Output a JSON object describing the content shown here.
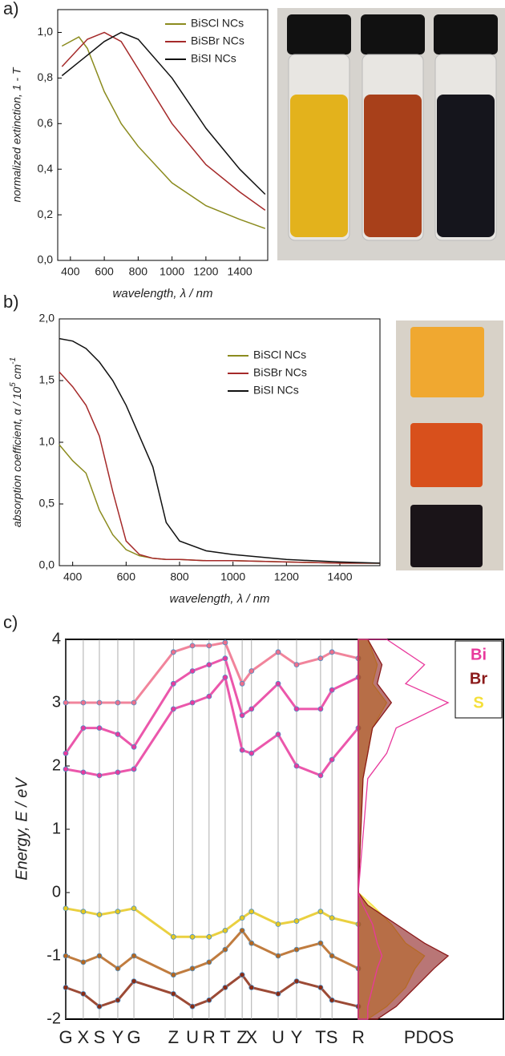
{
  "chart_data": [
    {
      "type": "line",
      "panel_label": "a)",
      "y_label": "normalized extinction, 1 - T",
      "x_label": "wavelength, λ / nm",
      "x": [
        350,
        450,
        500,
        600,
        700,
        800,
        1000,
        1200,
        1400,
        1550
      ],
      "xlim": [
        325,
        1565
      ],
      "xticks": [
        400,
        600,
        800,
        1000,
        1200,
        1400
      ],
      "ylim": [
        0,
        1.1
      ],
      "yticks": [
        {
          "value": 0,
          "label": "0,0"
        },
        {
          "value": 0.2,
          "label": "0,2"
        },
        {
          "value": 0.4,
          "label": "0,4"
        },
        {
          "value": 0.6,
          "label": "0,6"
        },
        {
          "value": 0.8,
          "label": "0,8"
        },
        {
          "value": 1.0,
          "label": "1,0"
        }
      ],
      "series": [
        {
          "name": "BiSCl NCs",
          "color": "#8b8b1e",
          "values": [
            0.94,
            0.98,
            0.93,
            0.74,
            0.6,
            0.5,
            0.34,
            0.24,
            0.18,
            0.14
          ]
        },
        {
          "name": "BiSBr NCs",
          "color": "#a52a2a",
          "values": [
            0.85,
            0.93,
            0.97,
            1.0,
            0.96,
            0.84,
            0.6,
            0.42,
            0.3,
            0.22
          ]
        },
        {
          "name": "BiSI NCs",
          "color": "#111111",
          "values": [
            0.81,
            0.87,
            0.9,
            0.96,
            1.0,
            0.97,
            0.8,
            0.58,
            0.4,
            0.29
          ]
        }
      ]
    },
    {
      "type": "line",
      "panel_label": "b)",
      "y_label": [
        "absorption coefficient, α / 10",
        "5",
        " cm",
        "-1"
      ],
      "x_label": "wavelength, λ / nm",
      "x": [
        350,
        400,
        450,
        500,
        550,
        600,
        650,
        700,
        750,
        800,
        900,
        1000,
        1200,
        1400,
        1550
      ],
      "xlim": [
        350,
        1550
      ],
      "xticks": [
        400,
        600,
        800,
        1000,
        1200,
        1400
      ],
      "ylim": [
        0,
        2
      ],
      "yticks": [
        {
          "value": 0,
          "label": "0,0"
        },
        {
          "value": 0.5,
          "label": "0,5"
        },
        {
          "value": 1.0,
          "label": "1,0"
        },
        {
          "value": 1.5,
          "label": "1,5"
        },
        {
          "value": 2.0,
          "label": "2,0"
        }
      ],
      "series": [
        {
          "name": "BiSCl NCs",
          "color": "#8b8b1e",
          "values": [
            0.98,
            0.85,
            0.75,
            0.45,
            0.25,
            0.13,
            0.08,
            0.06,
            0.05,
            0.05,
            0.04,
            0.04,
            0.03,
            0.02,
            0.02
          ]
        },
        {
          "name": "BiSBr NCs",
          "color": "#a52a2a",
          "values": [
            1.57,
            1.45,
            1.3,
            1.05,
            0.6,
            0.2,
            0.09,
            0.06,
            0.05,
            0.05,
            0.04,
            0.04,
            0.03,
            0.02,
            0.02
          ]
        },
        {
          "name": "BiSI NCs",
          "color": "#111111",
          "values": [
            1.84,
            1.82,
            1.76,
            1.65,
            1.5,
            1.3,
            1.05,
            0.8,
            0.35,
            0.2,
            0.12,
            0.09,
            0.05,
            0.03,
            0.02
          ]
        }
      ]
    },
    {
      "type": "band",
      "panel_label": "c)",
      "y_label": "Energy, E / eV",
      "categories": [
        "G",
        "X",
        "S",
        "Y",
        "G",
        "Z",
        "U",
        "R",
        "T",
        "Z",
        "X",
        "U",
        "Y",
        "T",
        "S",
        "R"
      ],
      "x": [
        0,
        0.06,
        0.115,
        0.178,
        0.233,
        0.368,
        0.433,
        0.49,
        0.545,
        0.603,
        0.635,
        0.726,
        0.789,
        0.871,
        0.91,
        1.0
      ],
      "xlim": [
        0,
        1
      ],
      "ylim": [
        -2,
        4
      ],
      "yticks": [
        -2,
        -1,
        0,
        1,
        2,
        3,
        4
      ],
      "series": [
        {
          "color": "#e8399c",
          "values": [
            1.95,
            1.9,
            1.85,
            1.9,
            1.95,
            2.9,
            3.0,
            3.1,
            3.4,
            2.25,
            2.2,
            2.5,
            2.0,
            1.85,
            2.1,
            2.6
          ]
        },
        {
          "color": "#e8399c",
          "values": [
            2.2,
            2.6,
            2.6,
            2.5,
            2.3,
            3.3,
            3.5,
            3.6,
            3.7,
            2.8,
            2.9,
            3.3,
            2.9,
            2.9,
            3.2,
            3.4
          ]
        },
        {
          "color": "#ee6f8a",
          "values": [
            3.0,
            3.0,
            3.0,
            3.0,
            3.0,
            3.8,
            3.9,
            3.9,
            3.95,
            3.3,
            3.5,
            3.8,
            3.6,
            3.7,
            3.8,
            3.7
          ]
        },
        {
          "color": "#e6c81e",
          "values": [
            -0.25,
            -0.3,
            -0.35,
            -0.3,
            -0.25,
            -0.7,
            -0.7,
            -0.7,
            -0.6,
            -0.4,
            -0.3,
            -0.5,
            -0.45,
            -0.3,
            -0.4,
            -0.5
          ]
        },
        {
          "color": "#b5651d",
          "values": [
            -1.0,
            -1.1,
            -1.0,
            -1.2,
            -1.0,
            -1.3,
            -1.2,
            -1.1,
            -0.9,
            -0.6,
            -0.8,
            -1.0,
            -0.9,
            -0.8,
            -1.0,
            -1.2
          ]
        },
        {
          "color": "#8b2a12",
          "values": [
            -1.5,
            -1.6,
            -1.8,
            -1.7,
            -1.4,
            -1.6,
            -1.8,
            -1.7,
            -1.5,
            -1.3,
            -1.5,
            -1.6,
            -1.4,
            -1.5,
            -1.7,
            -1.8
          ]
        }
      ],
      "pdos": {
        "title": "PDOS",
        "energy": [
          -2,
          -1.8,
          -1.5,
          -1.2,
          -1.0,
          -0.8,
          -0.5,
          -0.2,
          0,
          1.8,
          2.2,
          2.6,
          3.0,
          3.3,
          3.6,
          4
        ],
        "series": [
          {
            "name": "S",
            "color": "#f5e03a",
            "values": [
              0.1,
              0.3,
              0.5,
              0.6,
              0.7,
              0.5,
              0.35,
              0.15,
              0,
              0.05,
              0.1,
              0.15,
              0.3,
              0.15,
              0.2,
              0.1
            ]
          },
          {
            "name": "Br",
            "color": "#8b1a1a",
            "values": [
              0.2,
              0.4,
              0.6,
              0.8,
              0.95,
              0.7,
              0.4,
              0.1,
              0,
              0.05,
              0.1,
              0.15,
              0.35,
              0.2,
              0.25,
              0.1
            ]
          },
          {
            "name": "Bi",
            "color": "#e8399c",
            "values": [
              0.1,
              0.1,
              0.15,
              0.2,
              0.25,
              0.2,
              0.15,
              0.05,
              0,
              0.1,
              0.3,
              0.4,
              0.95,
              0.5,
              0.7,
              0.3
            ]
          }
        ]
      }
    }
  ]
}
